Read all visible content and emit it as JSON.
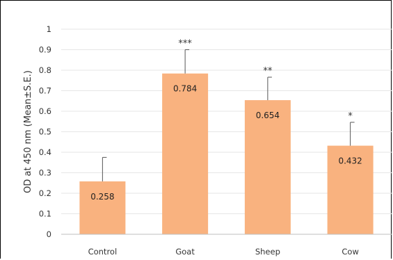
{
  "chart_data": {
    "type": "bar",
    "categories": [
      "Control",
      "Goat",
      "Sheep",
      "Cow"
    ],
    "values": [
      0.258,
      0.784,
      0.654,
      0.432
    ],
    "data_labels": [
      "0.258",
      "0.784",
      "0.654",
      "0.432"
    ],
    "error_upper": [
      0.375,
      0.9,
      0.766,
      0.546
    ],
    "significance": [
      "",
      "***",
      "**",
      "*"
    ],
    "ylabel": "OD at 450 nm (Mean±S.E.)",
    "xlabel": "",
    "title": "",
    "ylim": [
      0,
      1
    ],
    "yticks": [
      "0",
      "0.1",
      "0.2",
      "0.3",
      "0.4",
      "0.5",
      "0.6",
      "0.7",
      "0.8",
      "0.9",
      "1"
    ],
    "grid": true,
    "legend": "none",
    "bar_color": "#F9B27F",
    "grid_color": "#E6E6E6",
    "axis_color": "#BFBFBF"
  }
}
